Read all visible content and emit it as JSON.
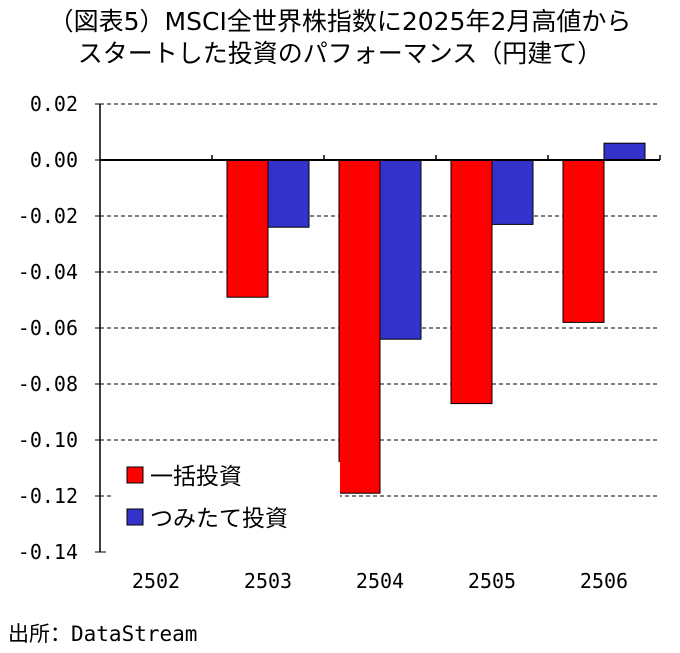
{
  "chart_data": {
    "type": "bar",
    "title_line1": "（図表5）MSCI全世界株指数に2025年2月高値から",
    "title_line2": "スタートした投資のパフォーマンス（円建て）",
    "categories": [
      "2502",
      "2503",
      "2504",
      "2505",
      "2506"
    ],
    "series": [
      {
        "name": "一括投資",
        "color": "#ff0000",
        "values": [
          0,
          -0.049,
          -0.119,
          -0.087,
          -0.058
        ]
      },
      {
        "name": "つみたて投資",
        "color": "#3333cc",
        "values": [
          0,
          -0.024,
          -0.064,
          -0.023,
          0.006
        ]
      }
    ],
    "ylim": [
      -0.14,
      0.02
    ],
    "yticks": [
      "0.02",
      "0.00",
      "-0.02",
      "-0.04",
      "-0.06",
      "-0.08",
      "-0.10",
      "-0.12",
      "-0.14"
    ],
    "grid": "dashed",
    "legend_position": "bottom-left",
    "source": "出所：DataStream"
  }
}
